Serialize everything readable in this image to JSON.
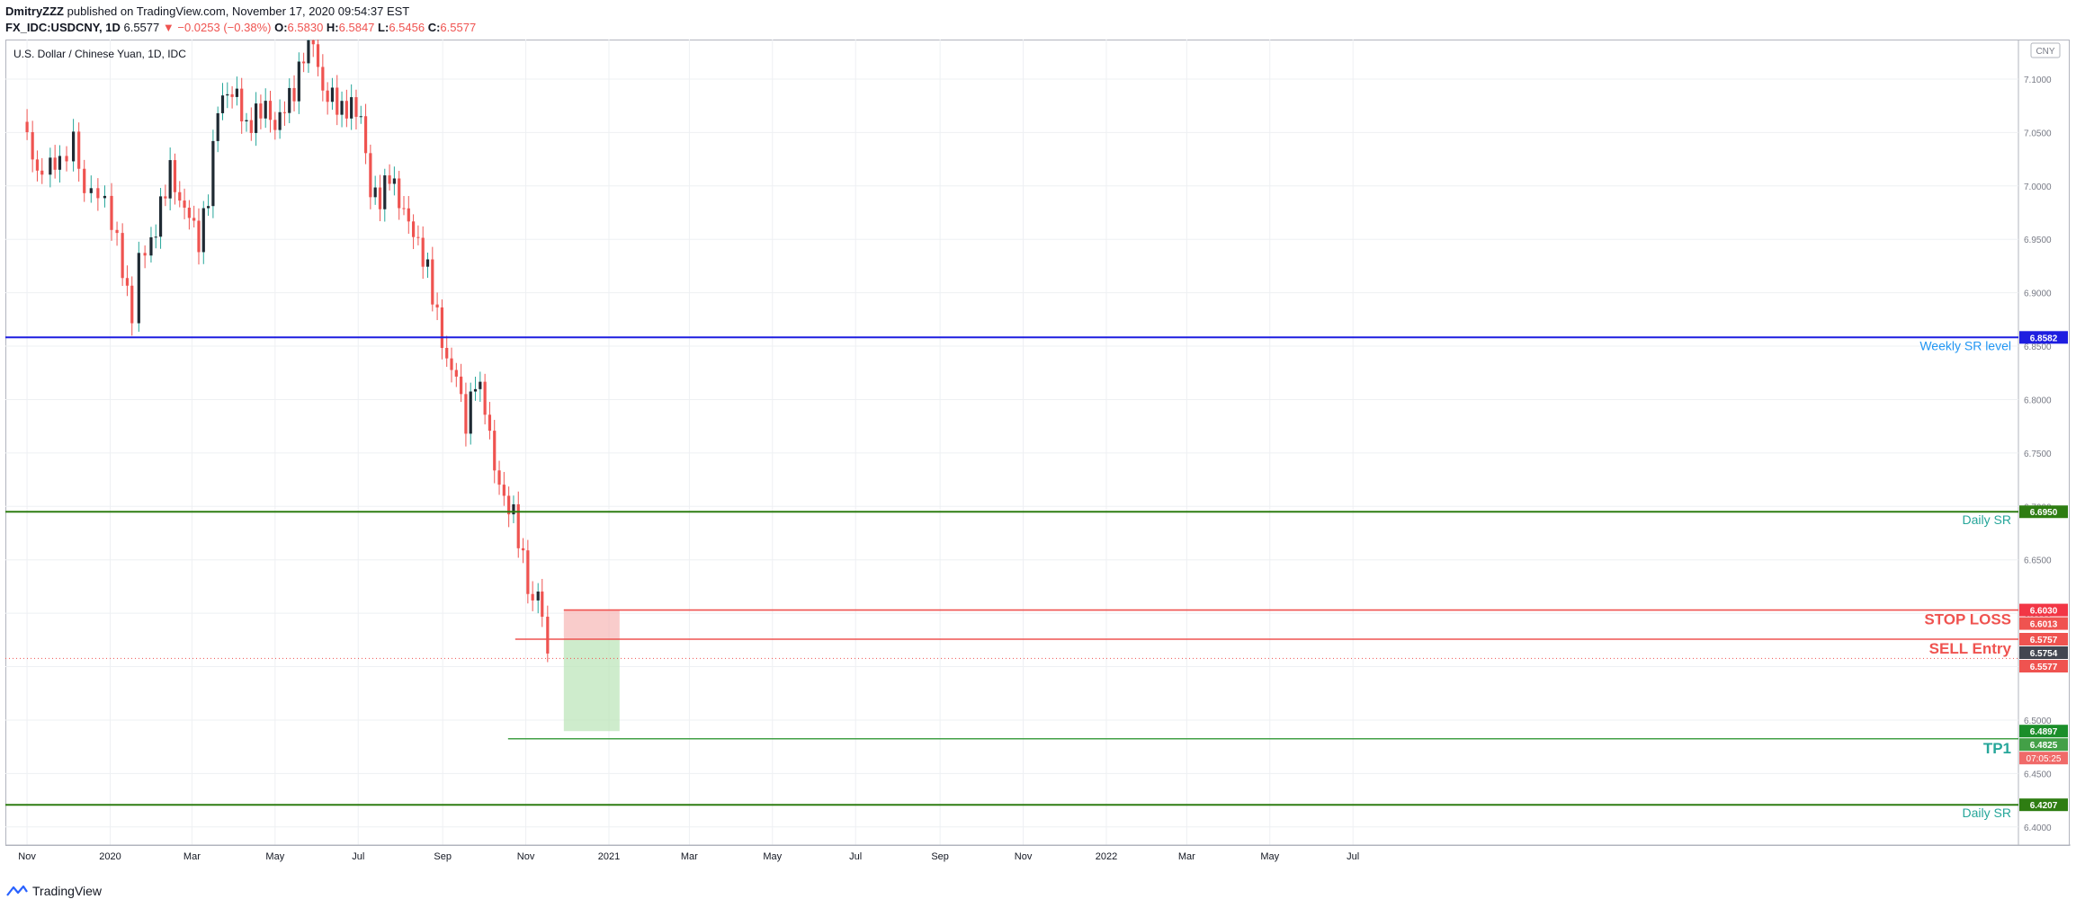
{
  "header": {
    "author": "DmitryZZZ",
    "published": "published on TradingView.com, November 17, 2020 09:54:37 EST",
    "symbol": "FX_IDC:USDCNY, 1D",
    "last": "6.5577",
    "change": "−0.0253 (−0.38%)",
    "o_label": "O:",
    "o_value": "6.5830",
    "h_label": "H:",
    "h_value": "6.5847",
    "l_label": "L:",
    "l_value": "6.5456",
    "c_label": "C:",
    "c_value": "6.5577"
  },
  "footer": {
    "brand": "TradingView"
  },
  "colors": {
    "up": "#26a69a",
    "down": "#ef5350",
    "candle_up": "#1f2a33"
  },
  "chart_data": {
    "type": "candlestick",
    "title": "U.S. Dollar / Chinese Yuan, 1D, IDC",
    "currency": "CNY",
    "ylim": [
      6.4,
      7.1
    ],
    "x_ticks": [
      "Nov",
      "2020",
      "Mar",
      "May",
      "Jul",
      "Sep",
      "Nov",
      "2021",
      "Mar",
      "May",
      "Jul",
      "Sep",
      "Nov",
      "2022",
      "Mar",
      "May",
      "Jul"
    ],
    "y_ticks": [
      "7.1000",
      "7.0500",
      "7.0000",
      "6.9500",
      "6.9000",
      "6.8500",
      "6.8000",
      "6.7500",
      "6.7000",
      "6.6500",
      "6.6000",
      "6.5500",
      "6.5000",
      "6.4500",
      "6.4000"
    ],
    "grid": true,
    "series": [
      {
        "name": "USDCNY",
        "points": [
          {
            "date": "2019-10-28",
            "close": 7.06
          },
          {
            "date": "2019-11-05",
            "close": 7.02
          },
          {
            "date": "2019-11-12",
            "close": 7.0
          },
          {
            "date": "2019-11-18",
            "close": 7.03
          },
          {
            "date": "2019-11-25",
            "close": 7.02
          },
          {
            "date": "2019-12-05",
            "close": 7.05
          },
          {
            "date": "2019-12-13",
            "close": 7.0
          },
          {
            "date": "2019-12-23",
            "close": 7.0
          },
          {
            "date": "2020-01-02",
            "close": 6.97
          },
          {
            "date": "2020-01-10",
            "close": 6.92
          },
          {
            "date": "2020-01-17",
            "close": 6.87
          },
          {
            "date": "2020-01-22",
            "close": 6.93
          },
          {
            "date": "2020-01-31",
            "close": 6.94
          },
          {
            "date": "2020-02-07",
            "close": 6.98
          },
          {
            "date": "2020-02-14",
            "close": 7.02
          },
          {
            "date": "2020-02-21",
            "close": 6.99
          },
          {
            "date": "2020-02-28",
            "close": 6.98
          },
          {
            "date": "2020-03-06",
            "close": 6.95
          },
          {
            "date": "2020-03-13",
            "close": 6.99
          },
          {
            "date": "2020-03-20",
            "close": 7.07
          },
          {
            "date": "2020-03-27",
            "close": 7.08
          },
          {
            "date": "2020-04-03",
            "close": 7.08
          },
          {
            "date": "2020-04-10",
            "close": 7.05
          },
          {
            "date": "2020-04-17",
            "close": 7.07
          },
          {
            "date": "2020-04-24",
            "close": 7.08
          },
          {
            "date": "2020-05-01",
            "close": 7.06
          },
          {
            "date": "2020-05-08",
            "close": 7.08
          },
          {
            "date": "2020-05-15",
            "close": 7.09
          },
          {
            "date": "2020-05-22",
            "close": 7.12
          },
          {
            "date": "2020-05-29",
            "close": 7.13
          },
          {
            "date": "2020-06-05",
            "close": 7.08
          },
          {
            "date": "2020-06-12",
            "close": 7.08
          },
          {
            "date": "2020-06-19",
            "close": 7.07
          },
          {
            "date": "2020-06-26",
            "close": 7.08
          },
          {
            "date": "2020-07-03",
            "close": 7.07
          },
          {
            "date": "2020-07-10",
            "close": 7.0
          },
          {
            "date": "2020-07-17",
            "close": 6.99
          },
          {
            "date": "2020-07-24",
            "close": 7.01
          },
          {
            "date": "2020-07-31",
            "close": 6.98
          },
          {
            "date": "2020-08-07",
            "close": 6.96
          },
          {
            "date": "2020-08-14",
            "close": 6.94
          },
          {
            "date": "2020-08-21",
            "close": 6.92
          },
          {
            "date": "2020-08-28",
            "close": 6.88
          },
          {
            "date": "2020-09-04",
            "close": 6.84
          },
          {
            "date": "2020-09-11",
            "close": 6.83
          },
          {
            "date": "2020-09-18",
            "close": 6.78
          },
          {
            "date": "2020-09-25",
            "close": 6.82
          },
          {
            "date": "2020-10-02",
            "close": 6.79
          },
          {
            "date": "2020-10-09",
            "close": 6.73
          },
          {
            "date": "2020-10-16",
            "close": 6.7
          },
          {
            "date": "2020-10-23",
            "close": 6.69
          },
          {
            "date": "2020-10-30",
            "close": 6.65
          },
          {
            "date": "2020-11-06",
            "close": 6.61
          },
          {
            "date": "2020-11-10",
            "close": 6.63
          },
          {
            "date": "2020-11-13",
            "close": 6.6
          },
          {
            "date": "2020-11-17",
            "close": 6.5577
          }
        ]
      }
    ],
    "levels": [
      {
        "label": "Weekly SR level",
        "value": 6.8582,
        "price_tag": "6.8582",
        "color": "#1e1ee0",
        "label_color": "#2196f3"
      },
      {
        "label": "Daily SR",
        "value": 6.695,
        "price_tag": "6.6950",
        "color": "#2e7d12",
        "label_color": "#26a69a"
      },
      {
        "label": "Daily SR",
        "value": 6.4207,
        "price_tag": "6.4207",
        "color": "#2e7d12",
        "label_color": "#26a69a"
      }
    ],
    "trade": {
      "stop_loss": {
        "label": "STOP LOSS",
        "value": 6.6013,
        "price_tag": "6.6013"
      },
      "entry": {
        "label": "SELL Entry",
        "value": 6.5757,
        "price_tag": "6.5757"
      },
      "tp1": {
        "label": "TP1",
        "value": 6.4825,
        "price_tag": "6.4825"
      },
      "box_top": {
        "value": 6.603,
        "price_tag": "6.6030"
      },
      "box_bottom": {
        "value": 6.4897,
        "price_tag": "6.4897"
      },
      "current": {
        "value": 6.5754,
        "price_tag": "6.5754"
      },
      "last": {
        "value": 6.5577,
        "price_tag": "6.5577"
      },
      "countdown": "07:05:25"
    }
  }
}
